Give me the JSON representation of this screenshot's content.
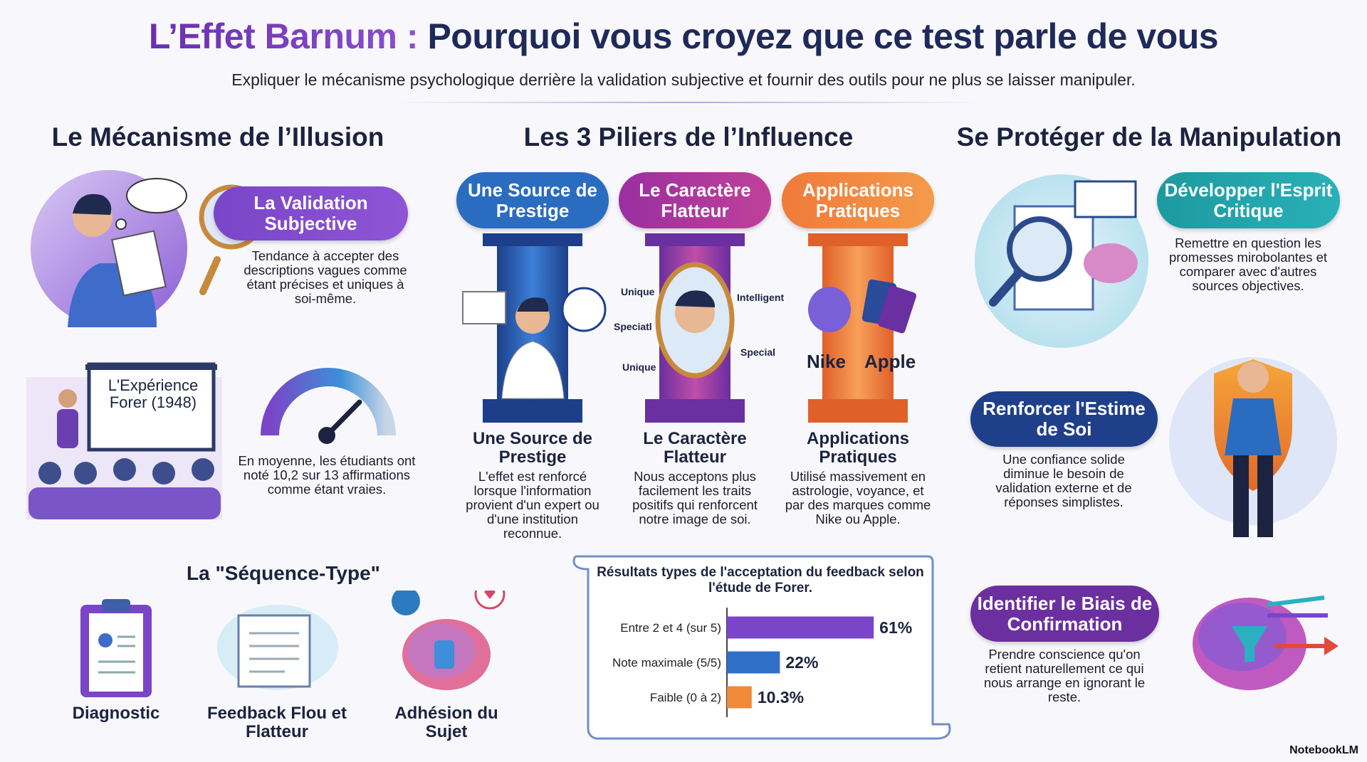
{
  "header": {
    "title_lead": "L’Effet Barnum :",
    "title_rest": "Pourquoi vous croyez que ce test parle de vous",
    "subtitle": "Expliquer le mécanisme psychologique derrière la validation subjective et fournir des outils pour ne plus se laisser manipuler."
  },
  "mechanism": {
    "heading": "Le Mécanisme de l’Illusion",
    "validation": {
      "title": "La Validation Subjective",
      "text": "Tendance à accepter des descriptions vagues comme étant précises et uniques à soi-même."
    },
    "forer": {
      "board": "L'Expérience Forer (1948)",
      "text": "En moyenne, les étudiants ont noté 10,2 sur 13 affirmations comme étant vraies."
    },
    "sequence": {
      "heading": "La \"Séquence-Type\"",
      "steps": [
        "Diagnostic",
        "Feedback Flou et Flatteur",
        "Adhésion du Sujet"
      ]
    }
  },
  "pillars": {
    "heading": "Les 3 Piliers de l’Influence",
    "items": [
      {
        "badge": "Une Source de Prestige",
        "title": "Une Source de Prestige",
        "text": "L'effet est renforcé lorsque l'information provient d'un expert ou d'une institution reconnue."
      },
      {
        "badge": "Le Caractère Flatteur",
        "title": "Le Caractère Flatteur",
        "text": "Nous acceptons plus facilement les traits positifs qui renforcent notre image de soi.",
        "words": [
          "Unique",
          "Speciatl",
          "Unique",
          "Intelligent",
          "Special"
        ]
      },
      {
        "badge": "Applications Pratiques",
        "title": "Applications Pratiques",
        "text": "Utilisé massivement en astrologie, voyance, et par des marques comme Nike ou Apple.",
        "words": [
          "Nike",
          "Apple"
        ]
      }
    ]
  },
  "chart_data": {
    "type": "bar",
    "orientation": "horizontal",
    "title": "Résultats types de l'acceptation du feedback selon l'étude de Forer.",
    "categories": [
      "Entre 2 et 4 (sur 5)",
      "Note maximale (5/5)",
      "Faible (0 à 2)"
    ],
    "values": [
      61,
      22,
      10.3
    ],
    "value_labels": [
      "61%",
      "22%",
      "10.3%"
    ],
    "colors": [
      "#7a45c8",
      "#2f6fc9",
      "#f08a3b"
    ]
  },
  "protection": {
    "heading": "Se Protéger de la Manipulation",
    "items": [
      {
        "title": "Développer l'Esprit Critique",
        "text": "Remettre en question les promesses mirobolantes et comparer avec d'autres sources objectives."
      },
      {
        "title": "Renforcer l'Estime de Soi",
        "text": "Une confiance solide diminue le besoin de validation externe et de réponses simplistes."
      },
      {
        "title": "Identifier le Biais de Confirmation",
        "text": "Prendre conscience qu'on retient naturellement ce qui nous arrange en ignorant le reste."
      }
    ]
  },
  "footer": {
    "brand": "NotebookLM"
  }
}
